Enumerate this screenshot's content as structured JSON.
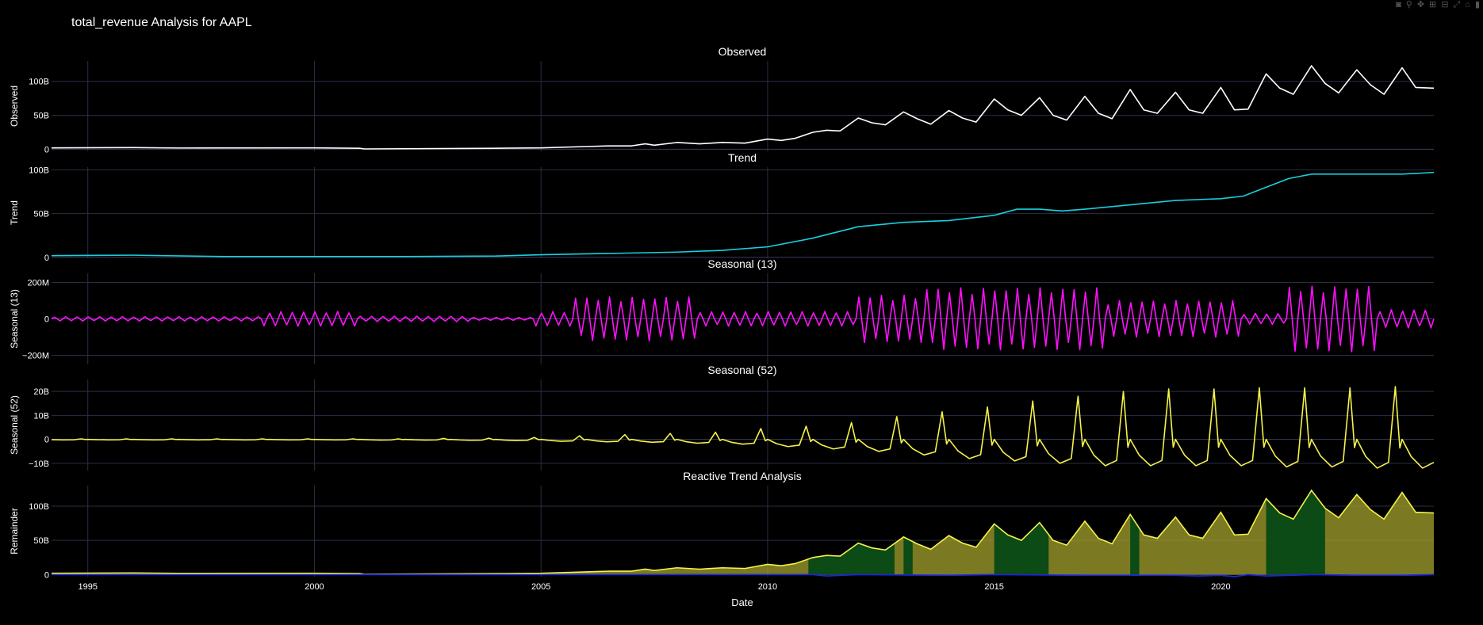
{
  "title": "total_revenue Analysis for AAPL",
  "modebar": [
    {
      "icon": "camera-icon",
      "glyph": "◙"
    },
    {
      "icon": "zoom-icon",
      "glyph": "⚲"
    },
    {
      "icon": "pan-icon",
      "glyph": "✥"
    },
    {
      "icon": "zoom-in-icon",
      "glyph": "⊞"
    },
    {
      "icon": "zoom-out-icon",
      "glyph": "⊟"
    },
    {
      "icon": "autoscale-icon",
      "glyph": "⤢"
    },
    {
      "icon": "home-icon",
      "glyph": "⌂"
    },
    {
      "icon": "bar-chart-icon",
      "glyph": "▮"
    }
  ],
  "colors": {
    "observed": "#ffffff",
    "trend": "#17d0e0",
    "seasonal13": "#ff10ff",
    "seasonal52": "#f5f24a",
    "reactive_yellow": "#a4a12c",
    "reactive_green": "#0c4a16",
    "remainder_line": "#1c25d6",
    "grid": "#2a2f45",
    "axis_text": "#ffffff"
  },
  "chart_data": [
    {
      "type": "line",
      "title": "Observed",
      "ylabel": "Observed",
      "xlim": [
        1994.2,
        2024.7
      ],
      "ylim": [
        -3,
        130
      ],
      "yticks": [
        0,
        50,
        100
      ],
      "ytick_labels": [
        "0",
        "50B",
        "100B"
      ],
      "series": [
        {
          "color_key": "observed",
          "x": [
            1994.2,
            1996,
            1997,
            2000,
            2001,
            2001.1,
            2004,
            2005,
            2006,
            2006.5,
            2007,
            2007.3,
            2007.5,
            2008,
            2008.5,
            2009,
            2009.5,
            2010,
            2010.3,
            2010.6,
            2011,
            2011.3,
            2011.6,
            2012,
            2012.3,
            2012.6,
            2013,
            2013.3,
            2013.6,
            2014,
            2014.3,
            2014.6,
            2015,
            2015.3,
            2015.6,
            2016,
            2016.3,
            2016.6,
            2017,
            2017.3,
            2017.6,
            2018,
            2018.3,
            2018.6,
            2019,
            2019.3,
            2019.6,
            2020,
            2020.3,
            2020.6,
            2021,
            2021.3,
            2021.6,
            2022,
            2022.3,
            2022.6,
            2023,
            2023.3,
            2023.6,
            2024,
            2024.3,
            2024.7
          ],
          "y": [
            2,
            2.5,
            1.8,
            2,
            1.5,
            0.5,
            1.5,
            2,
            4,
            5,
            5,
            8,
            6,
            10,
            8,
            10,
            9,
            15,
            13,
            16,
            25,
            28,
            27,
            46,
            39,
            36,
            55,
            45,
            37,
            57,
            46,
            40,
            74,
            58,
            50,
            76,
            50,
            43,
            78,
            53,
            45,
            88,
            58,
            53,
            84,
            58,
            53,
            91,
            58,
            59,
            111,
            90,
            81,
            123,
            97,
            83,
            117,
            95,
            81,
            120,
            91,
            90
          ]
        }
      ]
    },
    {
      "type": "line",
      "title": "Trend",
      "ylabel": "Trend",
      "xlim": [
        1994.2,
        2024.7
      ],
      "ylim": [
        -1,
        103
      ],
      "yticks": [
        0,
        50,
        100
      ],
      "ytick_labels": [
        "0",
        "50B",
        "100B"
      ],
      "series": [
        {
          "color_key": "trend",
          "x": [
            1994.2,
            1996,
            1998,
            2000,
            2002,
            2004,
            2005,
            2006,
            2007,
            2008,
            2009,
            2010,
            2011,
            2012,
            2013,
            2014,
            2015,
            2015.5,
            2016,
            2016.5,
            2017,
            2018,
            2019,
            2020,
            2020.5,
            2021,
            2021.5,
            2022,
            2023,
            2024,
            2024.7
          ],
          "y": [
            2,
            2.5,
            1,
            1,
            1,
            1.5,
            3,
            4,
            5,
            6,
            8,
            12,
            22,
            35,
            40,
            42,
            48,
            55,
            55,
            53,
            55,
            60,
            65,
            67,
            70,
            80,
            90,
            95,
            95,
            95,
            97
          ]
        }
      ]
    },
    {
      "type": "line",
      "title": "Seasonal (13)",
      "ylabel": "Seasonal (13)",
      "xlim": [
        1994.2,
        2024.7
      ],
      "ylim": [
        -250,
        250
      ],
      "yticks": [
        -200,
        0,
        200
      ],
      "ytick_labels": [
        "−200M",
        "0",
        "200M"
      ],
      "series": [
        {
          "color_key": "seasonal13",
          "period": 0.25,
          "amplitude_segments": [
            {
              "from": 1994.2,
              "to": 1998.8,
              "amp": 12
            },
            {
              "from": 1998.8,
              "to": 2001,
              "amp": 40
            },
            {
              "from": 2001,
              "to": 2003.5,
              "amp": 15
            },
            {
              "from": 2003.5,
              "to": 2004.8,
              "amp": 8
            },
            {
              "from": 2004.8,
              "to": 2005.7,
              "amp": 40
            },
            {
              "from": 2005.7,
              "to": 2008.5,
              "amp": 120
            },
            {
              "from": 2008.5,
              "to": 2012,
              "amp": 40
            },
            {
              "from": 2012,
              "to": 2013.5,
              "amp": 130
            },
            {
              "from": 2013.5,
              "to": 2017.5,
              "amp": 170
            },
            {
              "from": 2017.5,
              "to": 2020.5,
              "amp": 100
            },
            {
              "from": 2020.5,
              "to": 2021.5,
              "amp": 30
            },
            {
              "from": 2021.5,
              "to": 2023.5,
              "amp": 180
            },
            {
              "from": 2023.5,
              "to": 2024.7,
              "amp": 50
            }
          ]
        }
      ]
    },
    {
      "type": "line",
      "title": "Seasonal (52)",
      "ylabel": "Seasonal (52)",
      "xlim": [
        1994.2,
        2024.7
      ],
      "ylim": [
        -13,
        25
      ],
      "yticks": [
        -10,
        0,
        10,
        20
      ],
      "ytick_labels": [
        "−10B",
        "0",
        "10B",
        "20B"
      ],
      "series": [
        {
          "color_key": "seasonal52",
          "period": 1,
          "peak_by_year": {
            "1994": 0.2,
            "1995": 0.2,
            "1996": 0.2,
            "1997": 0.2,
            "1998": 0.2,
            "1999": 0.2,
            "2000": 0.2,
            "2001": 0.2,
            "2002": 0.4,
            "2003": 0.5,
            "2004": 0.8,
            "2005": 1.5,
            "2006": 2,
            "2007": 2.5,
            "2008": 3,
            "2009": 4.5,
            "2010": 5.5,
            "2011": 7,
            "2012": 9.5,
            "2013": 11.5,
            "2014": 13.5,
            "2015": 16,
            "2016": 18,
            "2017": 20,
            "2018": 21,
            "2019": 21,
            "2020": 21.5,
            "2021": 21.5,
            "2022": 21.5,
            "2023": 22,
            "2024": 22
          },
          "trough_by_year": {
            "1994": -0.2,
            "1995": -0.2,
            "1996": -0.2,
            "1997": -0.2,
            "1998": -0.2,
            "1999": -0.2,
            "2000": -0.2,
            "2001": -0.3,
            "2002": -0.3,
            "2003": -0.4,
            "2004": -0.5,
            "2005": -0.8,
            "2006": -1,
            "2007": -1.2,
            "2008": -1.6,
            "2009": -2,
            "2010": -3,
            "2011": -4,
            "2012": -5,
            "2013": -6.5,
            "2014": -8,
            "2015": -9,
            "2016": -10,
            "2017": -11,
            "2018": -11,
            "2019": -11,
            "2020": -11,
            "2021": -11.5,
            "2022": -11.5,
            "2023": -12,
            "2024": -12
          }
        }
      ]
    },
    {
      "type": "area",
      "title": "Reactive Trend Analysis",
      "ylabel": "Remainder",
      "xlabel": "Date",
      "xlim": [
        1994.2,
        2024.7
      ],
      "ylim": [
        -3,
        130
      ],
      "yticks": [
        0,
        50,
        100
      ],
      "ytick_labels": [
        "0",
        "50B",
        "100B"
      ],
      "xticks": [
        1995,
        2000,
        2005,
        2010,
        2015,
        2020
      ],
      "xtick_labels": [
        "1995",
        "2000",
        "2005",
        "2010",
        "2015",
        "2020"
      ],
      "green_ranges": [
        [
          2010.9,
          2012.8
        ],
        [
          2013.0,
          2013.2
        ],
        [
          2015.0,
          2016.2
        ],
        [
          2018.0,
          2018.2
        ],
        [
          2021.0,
          2022.3
        ]
      ],
      "remainder_line_x": [
        1994.2,
        2001,
        2009,
        2011,
        2011.3,
        2012,
        2014,
        2015,
        2017,
        2019,
        2019.5,
        2020,
        2020.3,
        2020.6,
        2021,
        2022,
        2023,
        2024,
        2024.7
      ],
      "remainder_line_y": [
        0,
        0,
        0,
        0,
        -2,
        0,
        -1,
        0,
        -1,
        -1,
        -2,
        -1,
        -3,
        0,
        -2,
        0,
        -1,
        -1,
        0
      ]
    }
  ]
}
